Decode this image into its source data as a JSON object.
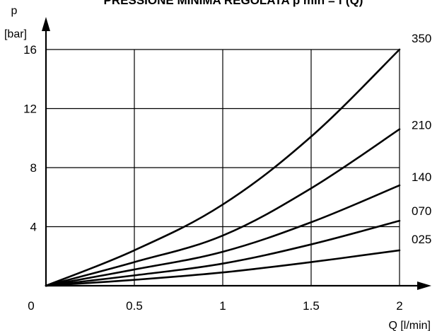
{
  "chart_data": {
    "type": "line",
    "title": "PRESSIONE MINIMA REGOLATA p min = f (Q)",
    "ylabel_line1": "p",
    "ylabel_line2": "[bar]",
    "xlabel": "Q [l/min]",
    "xlim": [
      0,
      2
    ],
    "ylim": [
      0,
      16
    ],
    "x_ticks": [
      {
        "value": 0,
        "label": "0"
      },
      {
        "value": 0.5,
        "label": "0.5"
      },
      {
        "value": 1,
        "label": "1"
      },
      {
        "value": 1.5,
        "label": "1.5"
      },
      {
        "value": 2,
        "label": "2"
      }
    ],
    "y_ticks": [
      {
        "value": 4,
        "label": "4"
      },
      {
        "value": 8,
        "label": "8"
      },
      {
        "value": 12,
        "label": "12"
      },
      {
        "value": 16,
        "label": "16"
      }
    ],
    "grid": true,
    "series": [
      {
        "name": "350",
        "x": [
          0,
          0.5,
          1,
          1.5,
          2
        ],
        "y": [
          0,
          2.4,
          5.5,
          10.1,
          16.0
        ]
      },
      {
        "name": "210",
        "x": [
          0,
          0.5,
          1,
          1.5,
          2
        ],
        "y": [
          0,
          1.6,
          3.4,
          6.6,
          10.6
        ]
      },
      {
        "name": "140",
        "x": [
          0,
          0.5,
          1,
          1.5,
          2
        ],
        "y": [
          0,
          1.1,
          2.3,
          4.3,
          6.8
        ]
      },
      {
        "name": "070",
        "x": [
          0,
          0.5,
          1,
          1.5,
          2
        ],
        "y": [
          0,
          0.7,
          1.5,
          2.8,
          4.4
        ]
      },
      {
        "name": "025",
        "x": [
          0,
          0.5,
          1,
          1.5,
          2
        ],
        "y": [
          0,
          0.4,
          0.9,
          1.6,
          2.4
        ]
      }
    ]
  }
}
